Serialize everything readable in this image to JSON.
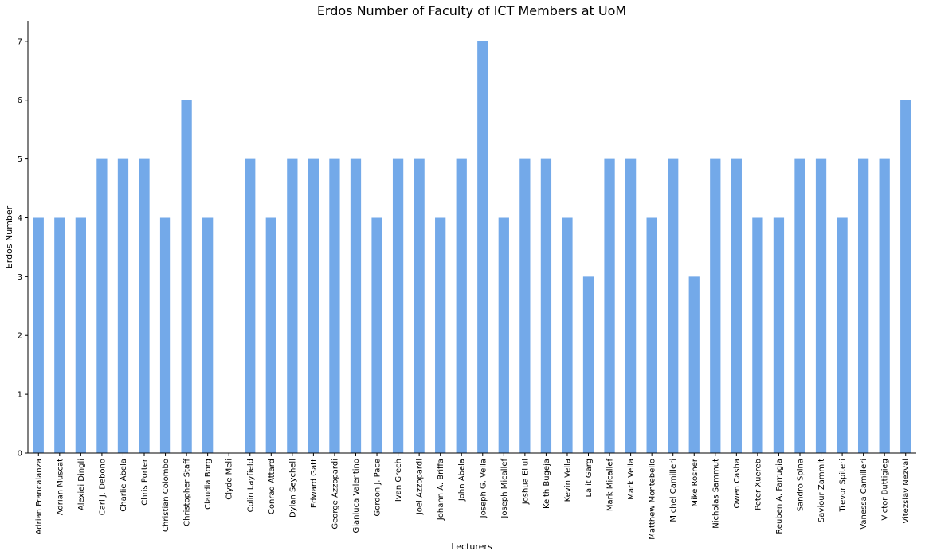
{
  "chart_data": {
    "type": "bar",
    "title": "Erdos Number of Faculty of ICT Members at UoM",
    "xlabel": "Lecturers",
    "ylabel": "Erdos Number",
    "ylim": [
      0,
      7.35
    ],
    "yticks": [
      0,
      1,
      2,
      3,
      4,
      5,
      6,
      7
    ],
    "grid": false,
    "legend": "none",
    "bar_color": "#73a9e9",
    "categories": [
      "Adrian Francalanza",
      "Adrian Muscat",
      "Alexiei Dingli",
      "Carl J. Debono",
      "Charlie Abela",
      "Chris Porter",
      "Christian Colombo",
      "Christopher Staff",
      "Claudia Borg",
      "Clyde Meli",
      "Colin Layfield",
      "Conrad Attard",
      "Dylan Seychell",
      "Edward Gatt",
      "George Azzopardi",
      "Gianluca Valentino",
      "Gordon J. Pace",
      "Ivan Grech",
      "Joel Azzopardi",
      "Johann A. Briffa",
      "John Abela",
      "Joseph G. Vella",
      "Joseph Micallef",
      "Joshua Ellul",
      "Keith Bugeja",
      "Kevin Vella",
      "Lalit Garg",
      "Mark Micallef",
      "Mark Vella",
      "Matthew Montebello",
      "Michel Camilleri",
      "Mike Rosner",
      "Nicholas Sammut",
      "Owen Casha",
      "Peter Xuereb",
      "Reuben A. Farrugia",
      "Sandro Spina",
      "Saviour Zammit",
      "Trevor Spiteri",
      "Vanessa Camilleri",
      "Victor Buttigieg",
      "Vitezslav Nezval"
    ],
    "values": [
      4,
      4,
      4,
      5,
      5,
      5,
      4,
      6,
      4,
      0,
      5,
      4,
      5,
      5,
      5,
      5,
      4,
      5,
      5,
      4,
      5,
      7,
      4,
      5,
      5,
      4,
      3,
      5,
      5,
      4,
      5,
      3,
      5,
      5,
      4,
      4,
      5,
      5,
      4,
      5,
      5,
      6
    ]
  }
}
